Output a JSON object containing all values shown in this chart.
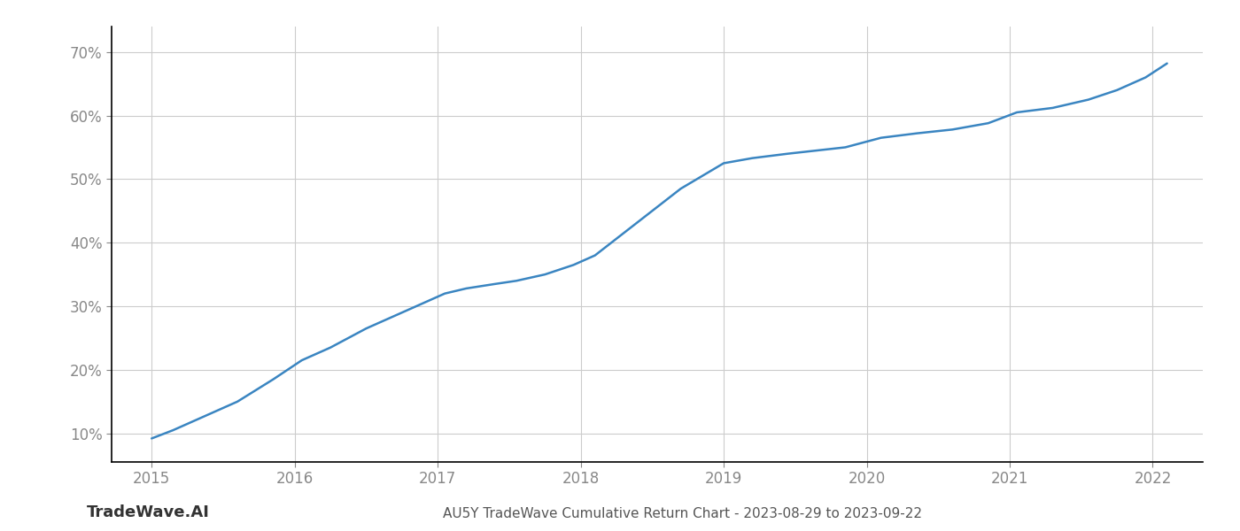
{
  "x_values": [
    2015.0,
    2015.15,
    2015.35,
    2015.6,
    2015.85,
    2016.05,
    2016.25,
    2016.5,
    2016.7,
    2016.9,
    2017.05,
    2017.2,
    2017.4,
    2017.55,
    2017.75,
    2017.95,
    2018.1,
    2018.3,
    2018.5,
    2018.7,
    2018.85,
    2019.0,
    2019.2,
    2019.45,
    2019.65,
    2019.85,
    2020.1,
    2020.35,
    2020.6,
    2020.85,
    2021.05,
    2021.3,
    2021.55,
    2021.75,
    2021.95,
    2022.1
  ],
  "y_values": [
    9.2,
    10.5,
    12.5,
    15.0,
    18.5,
    21.5,
    23.5,
    26.5,
    28.5,
    30.5,
    32.0,
    32.8,
    33.5,
    34.0,
    35.0,
    36.5,
    38.0,
    41.5,
    45.0,
    48.5,
    50.5,
    52.5,
    53.3,
    54.0,
    54.5,
    55.0,
    56.5,
    57.2,
    57.8,
    58.8,
    60.5,
    61.2,
    62.5,
    64.0,
    66.0,
    68.2
  ],
  "line_color": "#3a85c1",
  "line_width": 1.8,
  "background_color": "#ffffff",
  "grid_color": "#cccccc",
  "spine_color": "#000000",
  "title": "AU5Y TradeWave Cumulative Return Chart - 2023-08-29 to 2023-09-22",
  "title_fontsize": 11,
  "title_color": "#555555",
  "watermark_text": "TradeWave.AI",
  "watermark_fontsize": 13,
  "watermark_color": "#333333",
  "ytick_labels": [
    "10%",
    "20%",
    "30%",
    "40%",
    "50%",
    "60%",
    "70%"
  ],
  "ytick_values": [
    10,
    20,
    30,
    40,
    50,
    60,
    70
  ],
  "xtick_labels": [
    "2015",
    "2016",
    "2017",
    "2018",
    "2019",
    "2020",
    "2021",
    "2022"
  ],
  "xtick_values": [
    2015,
    2016,
    2017,
    2018,
    2019,
    2020,
    2021,
    2022
  ],
  "xlim": [
    2014.72,
    2022.35
  ],
  "ylim": [
    5.5,
    74
  ]
}
